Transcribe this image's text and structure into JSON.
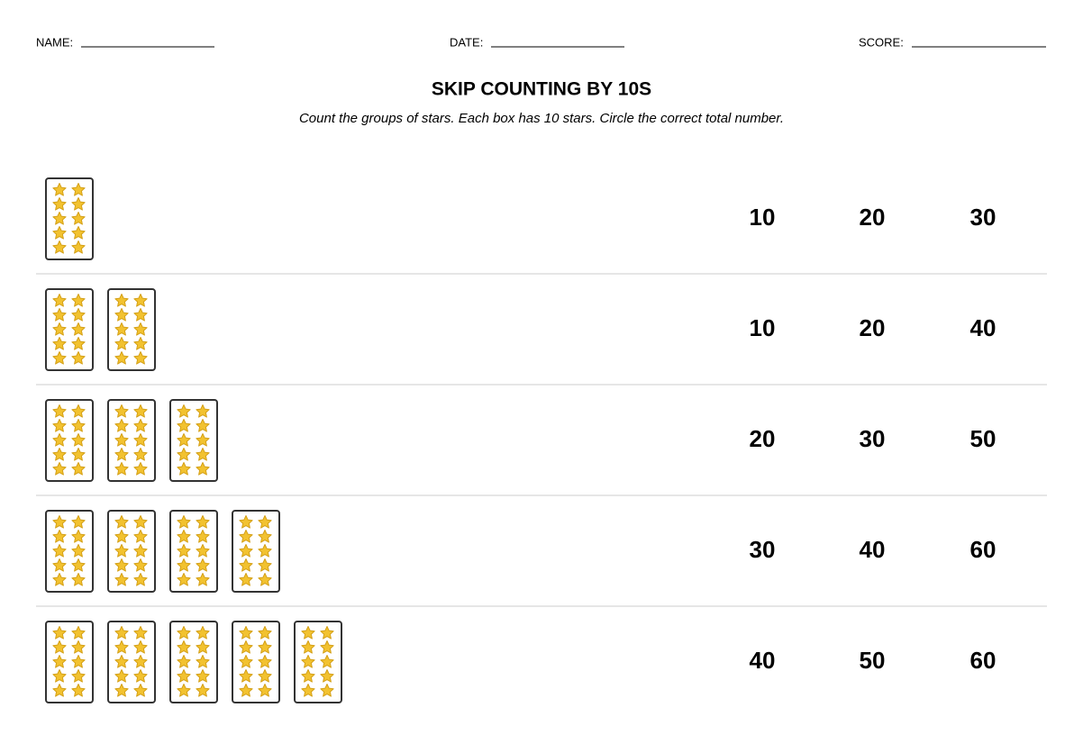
{
  "header": {
    "name_label": "NAME:",
    "date_label": "DATE:",
    "score_label": "SCORE:",
    "title": "SKIP COUNTING BY 10S",
    "instructions": "Count the groups of stars. Each box has 10 stars. Circle the correct total number."
  },
  "rows": [
    {
      "boxes": 1,
      "options": [
        10,
        20,
        30
      ]
    },
    {
      "boxes": 2,
      "options": [
        10,
        20,
        40
      ]
    },
    {
      "boxes": 3,
      "options": [
        20,
        30,
        50
      ]
    },
    {
      "boxes": 4,
      "options": [
        30,
        40,
        60
      ]
    },
    {
      "boxes": 5,
      "options": [
        40,
        50,
        60
      ]
    }
  ]
}
